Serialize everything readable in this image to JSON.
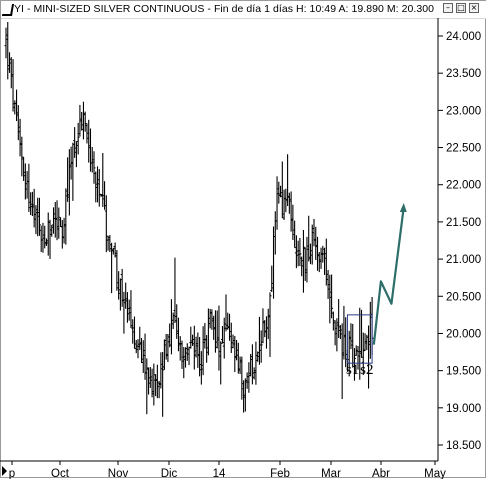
{
  "window": {
    "title": "YI - MINI-SIZED SILVER CONTINUOUS - Fin de día 1 días  H: 10:49  A: 19.890  M: 20.300",
    "buttons": [
      "minimize",
      "maximize",
      "close"
    ]
  },
  "chart_data": {
    "type": "bar",
    "style": "ohlc-price-bars",
    "title": "",
    "xlabel": "",
    "ylabel": "",
    "ylim": [
      18.35,
      24.2
    ],
    "grid": false,
    "y_axis_side": "right",
    "y_ticks": [
      "24.000",
      "23.500",
      "23.000",
      "22.500",
      "22.000",
      "21.500",
      "21.000",
      "20.500",
      "20.000",
      "19.500",
      "19.000",
      "18.500"
    ],
    "x_ticks": [
      "p",
      "Oct",
      "Nov",
      "Dic",
      "14",
      "Feb",
      "Mar",
      "Abr",
      "May"
    ],
    "price_anchors": [
      {
        "d": 0,
        "c": 23.9
      },
      {
        "d": 6,
        "c": 22.8
      },
      {
        "d": 14,
        "c": 21.7
      },
      {
        "d": 22,
        "c": 21.2
      },
      {
        "d": 28,
        "c": 21.6
      },
      {
        "d": 32,
        "c": 21.3
      },
      {
        "d": 38,
        "c": 22.5
      },
      {
        "d": 44,
        "c": 22.9
      },
      {
        "d": 48,
        "c": 22.4
      },
      {
        "d": 52,
        "c": 21.9
      },
      {
        "d": 60,
        "c": 21.2
      },
      {
        "d": 66,
        "c": 20.5
      },
      {
        "d": 72,
        "c": 20.0
      },
      {
        "d": 78,
        "c": 19.7
      },
      {
        "d": 84,
        "c": 19.3
      },
      {
        "d": 88,
        "c": 19.5
      },
      {
        "d": 95,
        "c": 20.1
      },
      {
        "d": 100,
        "c": 19.6
      },
      {
        "d": 106,
        "c": 19.9
      },
      {
        "d": 110,
        "c": 19.5
      },
      {
        "d": 116,
        "c": 20.2
      },
      {
        "d": 122,
        "c": 19.8
      },
      {
        "d": 126,
        "c": 20.1
      },
      {
        "d": 130,
        "c": 19.7
      },
      {
        "d": 136,
        "c": 19.2
      },
      {
        "d": 140,
        "c": 19.6
      },
      {
        "d": 146,
        "c": 20.0
      },
      {
        "d": 150,
        "c": 20.4
      },
      {
        "d": 154,
        "c": 21.9
      },
      {
        "d": 157,
        "c": 21.6
      },
      {
        "d": 160,
        "c": 21.8
      },
      {
        "d": 164,
        "c": 21.2
      },
      {
        "d": 170,
        "c": 21.0
      },
      {
        "d": 176,
        "c": 21.3
      },
      {
        "d": 182,
        "c": 20.8
      },
      {
        "d": 186,
        "c": 20.3
      },
      {
        "d": 190,
        "c": 19.9
      },
      {
        "d": 196,
        "c": 19.75
      },
      {
        "d": 202,
        "c": 19.85
      },
      {
        "d": 206,
        "c": 20.0
      },
      {
        "d": 208,
        "c": 20.1
      }
    ],
    "projection_line": [
      [
        209,
        19.85
      ],
      [
        213,
        20.7
      ],
      [
        219,
        20.4
      ],
      [
        226,
        21.7
      ]
    ],
    "box": {
      "d_from": 194,
      "d_to": 208,
      "high": 20.25,
      "low": 19.6
    },
    "annotations": [
      {
        "text": "s1",
        "d": 197
      },
      {
        "text": "s2",
        "d": 205
      }
    ]
  }
}
